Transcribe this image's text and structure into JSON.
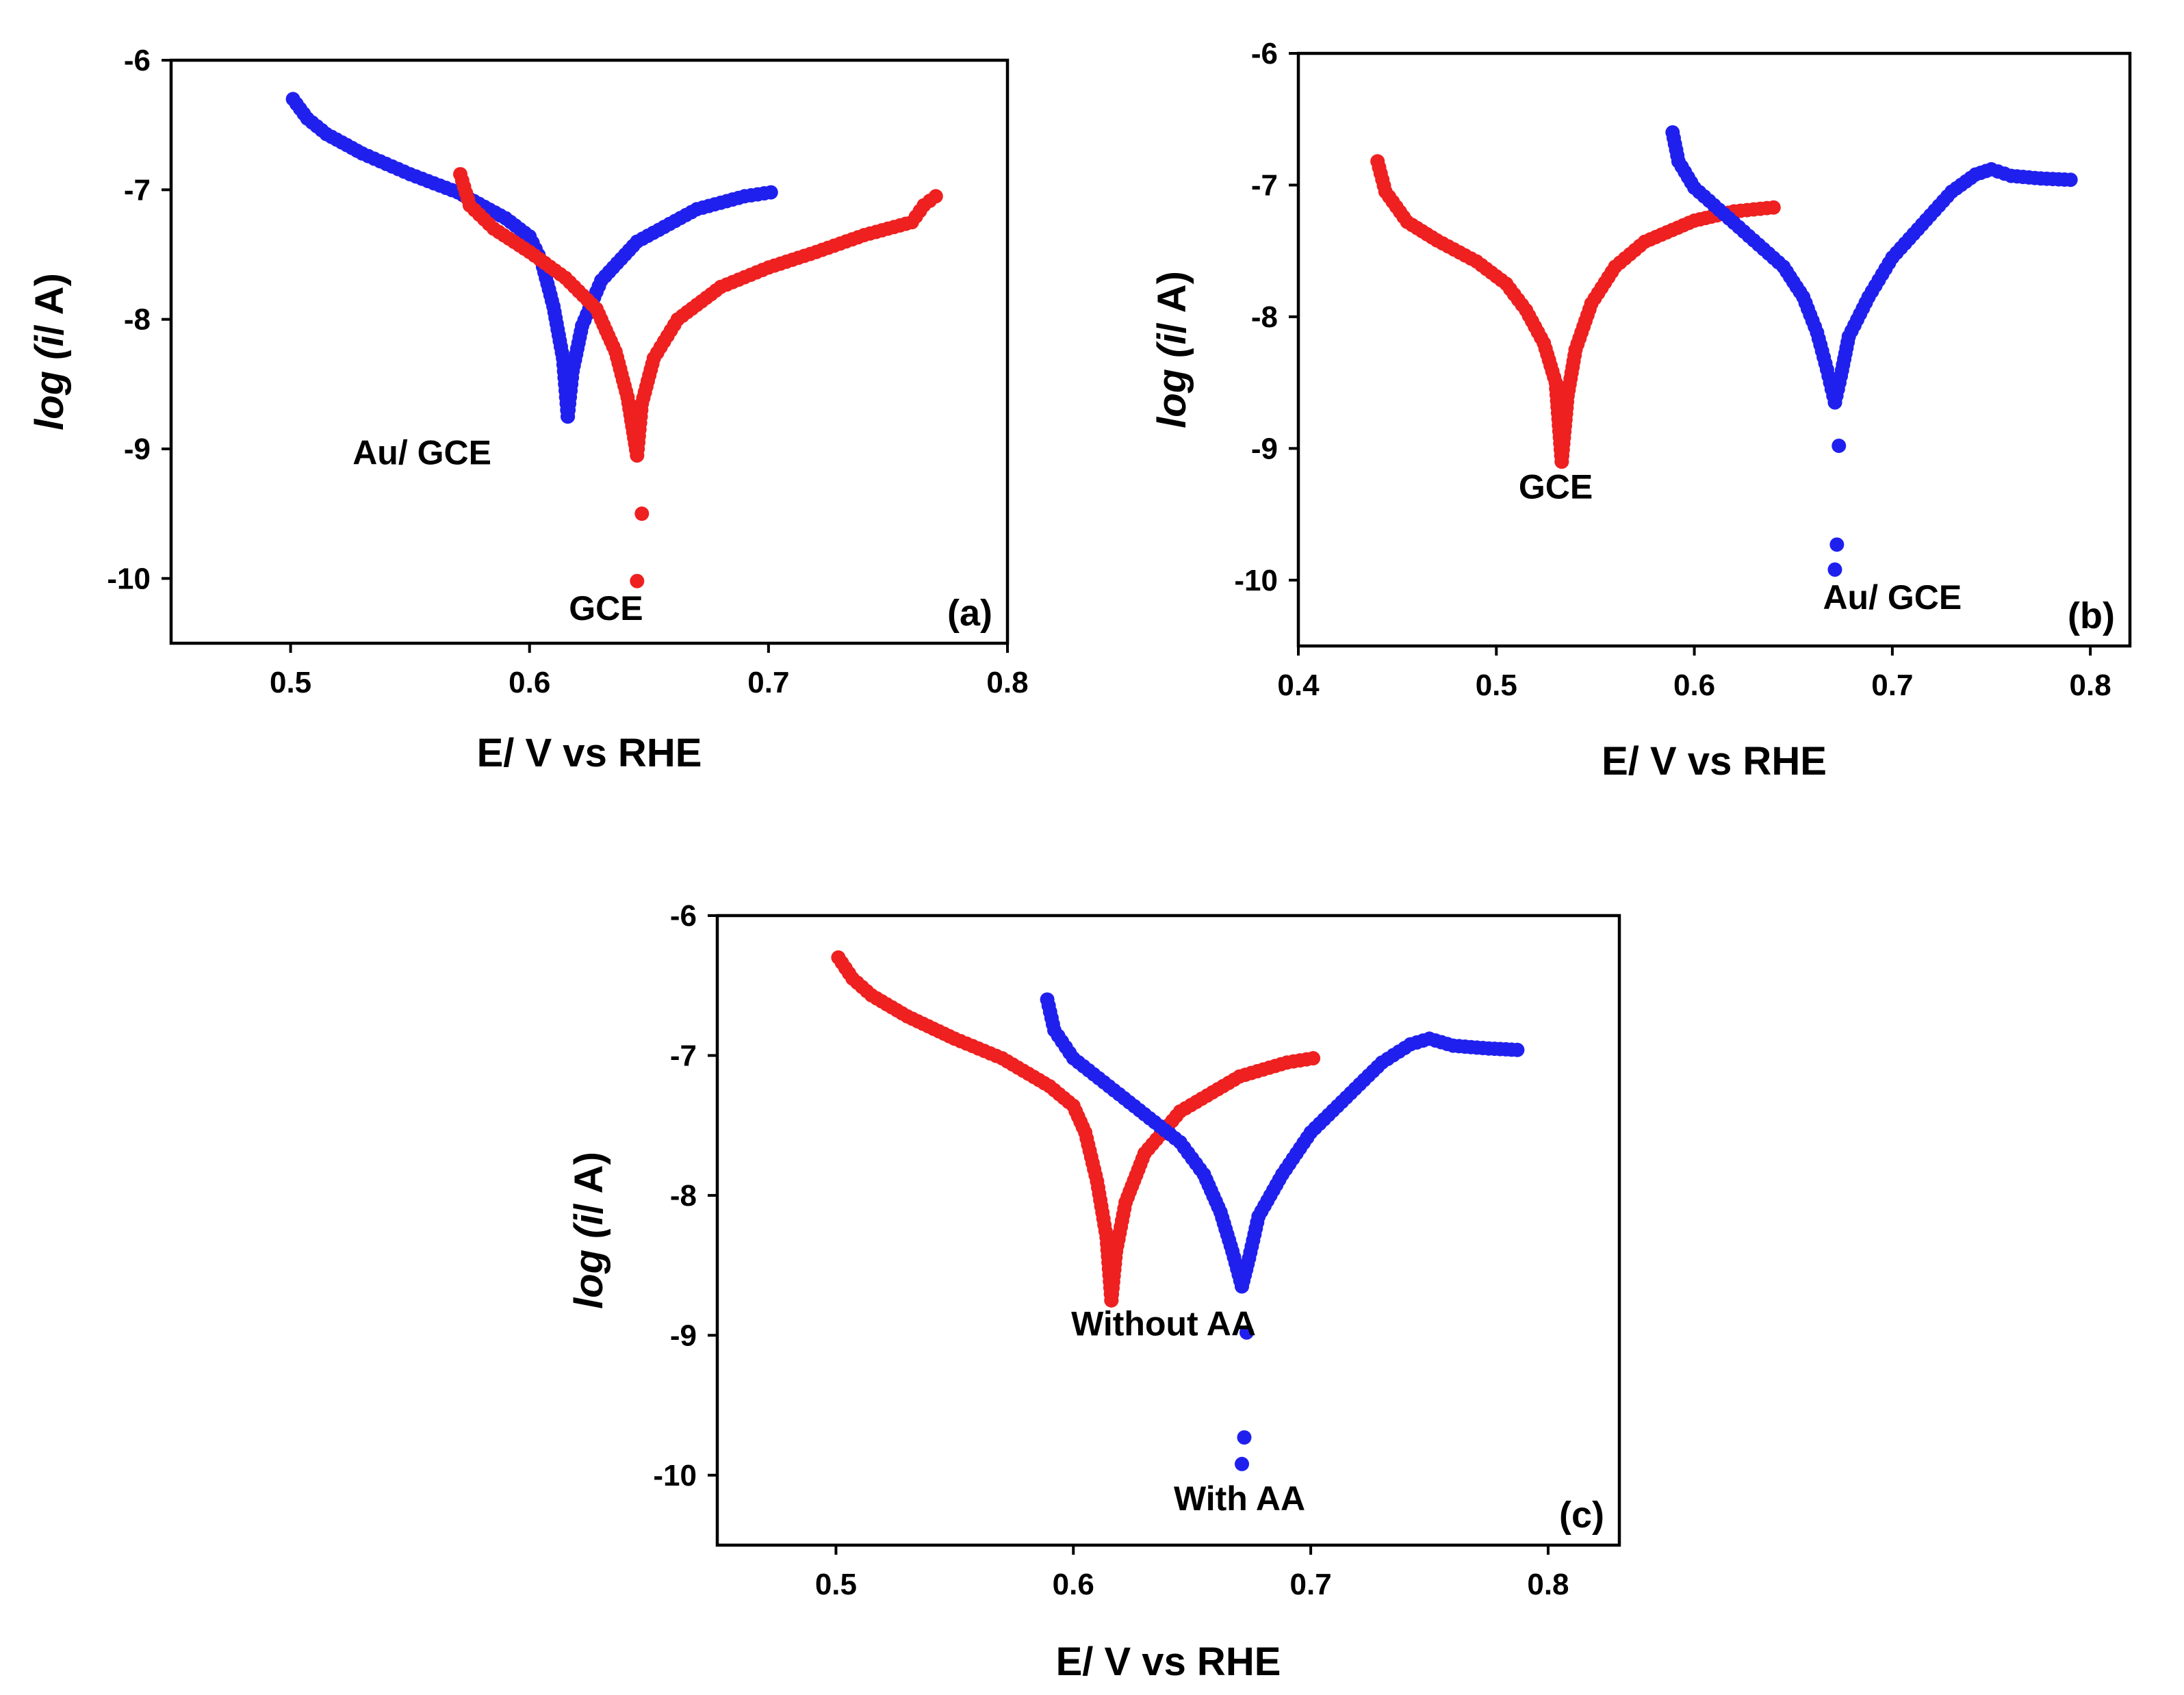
{
  "chart_data": [
    {
      "type": "scatter",
      "panel_label": "(a)",
      "xlabel": "E/ V vs RHE",
      "ylabel_italic": "log (i",
      "ylabel_rest": "/ A)",
      "xlim": [
        0.45,
        0.8
      ],
      "ylim": [
        -10.5,
        -6
      ],
      "xticks": [
        0.5,
        0.6,
        0.7,
        0.8
      ],
      "xtick_labels": [
        "0.5",
        "0.6",
        "0.7",
        "0.8"
      ],
      "yticks": [
        -6,
        -7,
        -8,
        -9,
        -10
      ],
      "ytick_labels": [
        "-6",
        "-7",
        "-8",
        "-9",
        "-10"
      ],
      "series": [
        {
          "name": "Au/ GCE",
          "color": "#2020ee",
          "left_branch": [
            [
              0.501,
              -6.3
            ],
            [
              0.507,
              -6.45
            ],
            [
              0.515,
              -6.57
            ],
            [
              0.53,
              -6.72
            ],
            [
              0.55,
              -6.88
            ],
            [
              0.57,
              -7.02
            ],
            [
              0.59,
              -7.22
            ],
            [
              0.6,
              -7.36
            ],
            [
              0.605,
              -7.55
            ],
            [
              0.61,
              -7.9
            ],
            [
              0.614,
              -8.3
            ],
            [
              0.616,
              -8.75
            ]
          ],
          "right_branch": [
            [
              0.616,
              -8.75
            ],
            [
              0.618,
              -8.4
            ],
            [
              0.622,
              -8.05
            ],
            [
              0.63,
              -7.7
            ],
            [
              0.645,
              -7.4
            ],
            [
              0.67,
              -7.15
            ],
            [
              0.69,
              -7.05
            ],
            [
              0.701,
              -7.02
            ]
          ],
          "outliers": []
        },
        {
          "name": "GCE",
          "color": "#ee2020",
          "left_branch": [
            [
              0.571,
              -6.88
            ],
            [
              0.575,
              -7.12
            ],
            [
              0.585,
              -7.3
            ],
            [
              0.6,
              -7.48
            ],
            [
              0.615,
              -7.68
            ],
            [
              0.628,
              -7.92
            ],
            [
              0.636,
              -8.25
            ],
            [
              0.641,
              -8.6
            ],
            [
              0.645,
              -9.05
            ]
          ],
          "right_branch": [
            [
              0.645,
              -9.05
            ],
            [
              0.647,
              -8.65
            ],
            [
              0.652,
              -8.3
            ],
            [
              0.662,
              -8.0
            ],
            [
              0.68,
              -7.75
            ],
            [
              0.7,
              -7.6
            ],
            [
              0.72,
              -7.48
            ],
            [
              0.74,
              -7.35
            ],
            [
              0.76,
              -7.25
            ],
            [
              0.765,
              -7.12
            ],
            [
              0.77,
              -7.05
            ]
          ],
          "outliers": [
            [
              0.647,
              -9.5
            ],
            [
              0.645,
              -10.02
            ]
          ]
        }
      ],
      "annotations": [
        {
          "text": "Au/ GCE",
          "x": 0.555,
          "y": -9.12
        },
        {
          "text": "GCE",
          "x": 0.632,
          "y": -10.32
        }
      ]
    },
    {
      "type": "scatter",
      "panel_label": "(b)",
      "xlabel": "E/ V vs RHE",
      "ylabel_italic": "log (i",
      "ylabel_rest": "/ A)",
      "xlim": [
        0.4,
        0.82
      ],
      "ylim": [
        -10.5,
        -6
      ],
      "xticks": [
        0.4,
        0.5,
        0.6,
        0.7,
        0.8
      ],
      "xtick_labels": [
        "0.4",
        "0.5",
        "0.6",
        "0.7",
        "0.8"
      ],
      "yticks": [
        -6,
        -7,
        -8,
        -9,
        -10
      ],
      "ytick_labels": [
        "-6",
        "-7",
        "-8",
        "-9",
        "-10"
      ],
      "series": [
        {
          "name": "GCE",
          "color": "#ee2020",
          "left_branch": [
            [
              0.44,
              -6.82
            ],
            [
              0.444,
              -7.05
            ],
            [
              0.455,
              -7.28
            ],
            [
              0.47,
              -7.42
            ],
            [
              0.49,
              -7.58
            ],
            [
              0.505,
              -7.75
            ],
            [
              0.515,
              -7.95
            ],
            [
              0.524,
              -8.2
            ],
            [
              0.53,
              -8.5
            ],
            [
              0.533,
              -9.1
            ]
          ],
          "right_branch": [
            [
              0.533,
              -9.1
            ],
            [
              0.536,
              -8.6
            ],
            [
              0.54,
              -8.25
            ],
            [
              0.548,
              -7.9
            ],
            [
              0.56,
              -7.62
            ],
            [
              0.575,
              -7.43
            ],
            [
              0.6,
              -7.27
            ],
            [
              0.62,
              -7.2
            ],
            [
              0.64,
              -7.17
            ]
          ],
          "outliers": []
        },
        {
          "name": "Au/ GCE",
          "color": "#2020ee",
          "left_branch": [
            [
              0.589,
              -6.6
            ],
            [
              0.592,
              -6.82
            ],
            [
              0.6,
              -7.02
            ],
            [
              0.615,
              -7.22
            ],
            [
              0.63,
              -7.42
            ],
            [
              0.645,
              -7.62
            ],
            [
              0.655,
              -7.85
            ],
            [
              0.662,
              -8.12
            ],
            [
              0.667,
              -8.4
            ],
            [
              0.671,
              -8.65
            ]
          ],
          "right_branch": [
            [
              0.671,
              -8.65
            ],
            [
              0.674,
              -8.45
            ],
            [
              0.678,
              -8.15
            ],
            [
              0.688,
              -7.85
            ],
            [
              0.7,
              -7.55
            ],
            [
              0.715,
              -7.3
            ],
            [
              0.73,
              -7.05
            ],
            [
              0.742,
              -6.92
            ],
            [
              0.75,
              -6.88
            ],
            [
              0.76,
              -6.93
            ],
            [
              0.775,
              -6.95
            ],
            [
              0.79,
              -6.96
            ]
          ],
          "outliers": [
            [
              0.673,
              -8.98
            ],
            [
              0.672,
              -9.73
            ],
            [
              0.671,
              -9.92
            ]
          ]
        }
      ],
      "annotations": [
        {
          "text": "GCE",
          "x": 0.53,
          "y": -9.38
        },
        {
          "text": "Au/ GCE",
          "x": 0.7,
          "y": -10.22
        }
      ]
    },
    {
      "type": "scatter",
      "panel_label": "(c)",
      "xlabel": "E/ V vs RHE",
      "ylabel_italic": "log (i",
      "ylabel_rest": "/ A)",
      "xlim": [
        0.45,
        0.83
      ],
      "ylim": [
        -10.5,
        -6
      ],
      "xticks": [
        0.5,
        0.6,
        0.7,
        0.8
      ],
      "xtick_labels": [
        "0.5",
        "0.6",
        "0.7",
        "0.8"
      ],
      "yticks": [
        -6,
        -7,
        -8,
        -9,
        -10
      ],
      "ytick_labels": [
        "-6",
        "-7",
        "-8",
        "-9",
        "-10"
      ],
      "series": [
        {
          "name": "Without AA",
          "color": "#ee2020",
          "left_branch": [
            [
              0.501,
              -6.3
            ],
            [
              0.507,
              -6.45
            ],
            [
              0.515,
              -6.57
            ],
            [
              0.53,
              -6.72
            ],
            [
              0.55,
              -6.88
            ],
            [
              0.57,
              -7.02
            ],
            [
              0.59,
              -7.22
            ],
            [
              0.6,
              -7.36
            ],
            [
              0.605,
              -7.55
            ],
            [
              0.61,
              -7.9
            ],
            [
              0.614,
              -8.3
            ],
            [
              0.616,
              -8.75
            ]
          ],
          "right_branch": [
            [
              0.616,
              -8.75
            ],
            [
              0.618,
              -8.4
            ],
            [
              0.622,
              -8.05
            ],
            [
              0.63,
              -7.7
            ],
            [
              0.645,
              -7.4
            ],
            [
              0.67,
              -7.15
            ],
            [
              0.69,
              -7.05
            ],
            [
              0.701,
              -7.02
            ]
          ],
          "outliers": []
        },
        {
          "name": "With AA",
          "color": "#2020ee",
          "left_branch": [
            [
              0.589,
              -6.6
            ],
            [
              0.592,
              -6.82
            ],
            [
              0.6,
              -7.02
            ],
            [
              0.615,
              -7.22
            ],
            [
              0.63,
              -7.42
            ],
            [
              0.645,
              -7.62
            ],
            [
              0.655,
              -7.85
            ],
            [
              0.662,
              -8.12
            ],
            [
              0.667,
              -8.4
            ],
            [
              0.671,
              -8.65
            ]
          ],
          "right_branch": [
            [
              0.671,
              -8.65
            ],
            [
              0.674,
              -8.45
            ],
            [
              0.678,
              -8.15
            ],
            [
              0.688,
              -7.85
            ],
            [
              0.7,
              -7.55
            ],
            [
              0.715,
              -7.3
            ],
            [
              0.73,
              -7.05
            ],
            [
              0.742,
              -6.92
            ],
            [
              0.75,
              -6.88
            ],
            [
              0.76,
              -6.93
            ],
            [
              0.775,
              -6.95
            ],
            [
              0.787,
              -6.96
            ]
          ],
          "outliers": [
            [
              0.673,
              -8.98
            ],
            [
              0.672,
              -9.73
            ],
            [
              0.671,
              -9.92
            ]
          ]
        }
      ],
      "annotations": [
        {
          "text": "Without AA",
          "x": 0.638,
          "y": -9.0
        },
        {
          "text": "With AA",
          "x": 0.67,
          "y": -10.25
        }
      ]
    }
  ]
}
